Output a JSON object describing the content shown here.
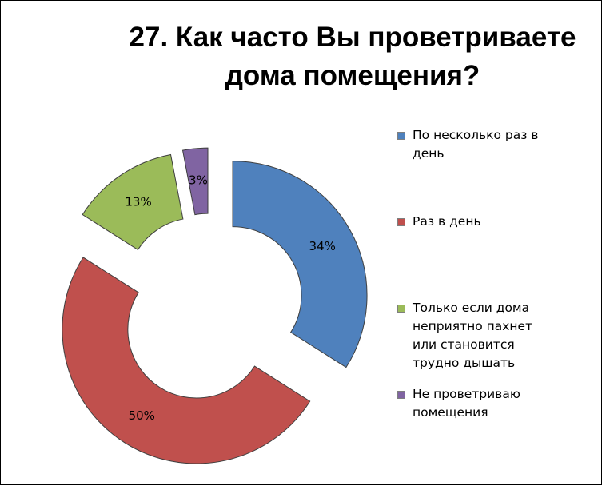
{
  "chart_data": {
    "type": "pie",
    "variant": "exploded-doughnut",
    "title": [
      "27. Как часто Вы проветриваете",
      "дома помещения?"
    ],
    "legend_position": "right",
    "slices": [
      {
        "name": "По несколько раз в день",
        "value": 34,
        "label": "34%",
        "color": "#4f81bd"
      },
      {
        "name": "Раз в день",
        "value": 50,
        "label": "50%",
        "color": "#c0504d"
      },
      {
        "name": "Только если дома неприятно пахнет или становится трудно дышать",
        "value": 13,
        "label": "13%",
        "color": "#9bbb59"
      },
      {
        "name": "Не проветриваю помещения",
        "value": 3,
        "label": "3%",
        "color": "#8064a2"
      }
    ],
    "legend": [
      {
        "lines": [
          "По несколько раз в",
          "день"
        ]
      },
      {
        "lines": [
          "Раз в день"
        ]
      },
      {
        "lines": [
          "Только если дома",
          "неприятно пахнет",
          "или становится",
          "трудно дышать"
        ]
      },
      {
        "lines": [
          "Не проветриваю",
          "помещения"
        ]
      }
    ]
  }
}
